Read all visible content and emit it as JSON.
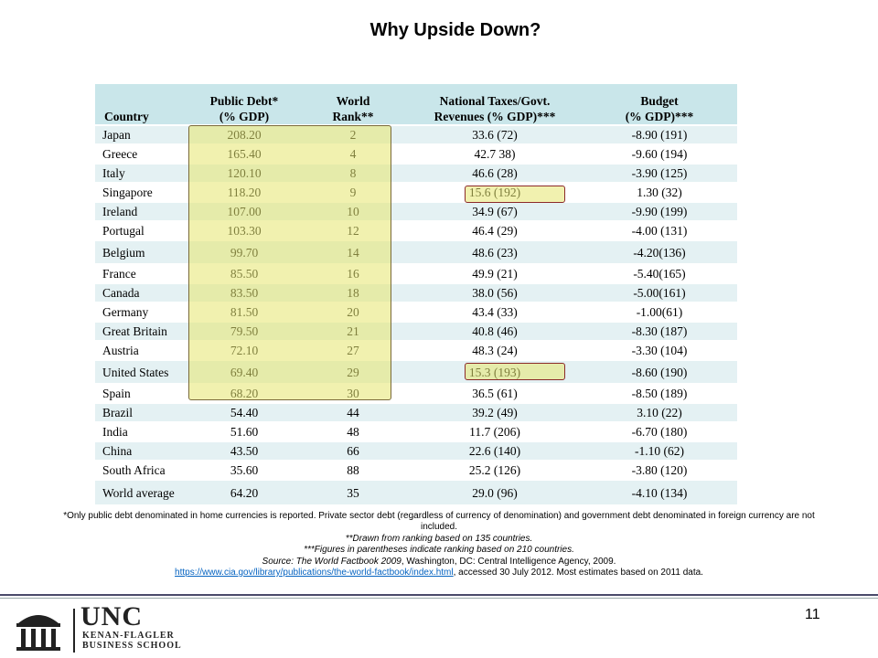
{
  "title": "Why Upside Down?",
  "table": {
    "headers": {
      "country": "Country",
      "debt_line1": "Public Debt*",
      "debt_line2": "(% GDP)",
      "rank_line1": "World",
      "rank_line2": "Rank**",
      "taxes_line1": "National Taxes/Govt.",
      "taxes_line2": "Revenues  (% GDP)***",
      "budget_line1": "Budget",
      "budget_line2": "(% GDP)***"
    },
    "rows": [
      {
        "country": "Japan",
        "debt": "208.20",
        "rank": "2",
        "taxes": "33.6 (72)",
        "budget": "-8.90 (191)"
      },
      {
        "country": "Greece",
        "debt": "165.40",
        "rank": "4",
        "taxes": "42.7 38)",
        "budget": "-9.60 (194)"
      },
      {
        "country": "Italy",
        "debt": "120.10",
        "rank": "8",
        "taxes": "46.6 (28)",
        "budget": "-3.90 (125)"
      },
      {
        "country": "Singapore",
        "debt": "118.20",
        "rank": "9",
        "taxes": "15.6 (192)",
        "budget": "1.30 (32)"
      },
      {
        "country": "Ireland",
        "debt": "107.00",
        "rank": "10",
        "taxes": "34.9 (67)",
        "budget": "-9.90 (199)"
      },
      {
        "country": "Portugal",
        "debt": "103.30",
        "rank": "12",
        "taxes": "46.4 (29)",
        "budget": "-4.00 (131)"
      },
      {
        "country": "Belgium",
        "debt": "99.70",
        "rank": "14",
        "taxes": "48.6 (23)",
        "budget": "-4.20(136)"
      },
      {
        "country": "France",
        "debt": "85.50",
        "rank": "16",
        "taxes": "49.9 (21)",
        "budget": "-5.40(165)"
      },
      {
        "country": "Canada",
        "debt": "83.50",
        "rank": "18",
        "taxes": "38.0 (56)",
        "budget": "-5.00(161)"
      },
      {
        "country": "Germany",
        "debt": "81.50",
        "rank": "20",
        "taxes": "43.4 (33)",
        "budget": "-1.00(61)"
      },
      {
        "country": "Great Britain",
        "debt": "79.50",
        "rank": "21",
        "taxes": "40.8 (46)",
        "budget": "-8.30 (187)"
      },
      {
        "country": "Austria",
        "debt": "72.10",
        "rank": "27",
        "taxes": "48.3 (24)",
        "budget": "-3.30 (104)"
      },
      {
        "country": "United States",
        "debt": "69.40",
        "rank": "29",
        "taxes": "15.3 (193)",
        "budget": "-8.60 (190)"
      },
      {
        "country": "Spain",
        "debt": "68.20",
        "rank": "30",
        "taxes": "36.5 (61)",
        "budget": "-8.50 (189)"
      },
      {
        "country": "Brazil",
        "debt": "54.40",
        "rank": "44",
        "taxes": "39.2 (49)",
        "budget": "3.10 (22)"
      },
      {
        "country": "India",
        "debt": "51.60",
        "rank": "48",
        "taxes": "11.7 (206)",
        "budget": "-6.70 (180)"
      },
      {
        "country": "China",
        "debt": "43.50",
        "rank": "66",
        "taxes": "22.6 (140)",
        "budget": "-1.10 (62)"
      },
      {
        "country": "South Africa",
        "debt": "35.60",
        "rank": "88",
        "taxes": "25.2 (126)",
        "budget": "-3.80 (120)"
      },
      {
        "country": "World average",
        "debt": "64.20",
        "rank": "35",
        "taxes": "29.0 (96)",
        "budget": "-4.10 (134)"
      }
    ]
  },
  "notes": {
    "line1": "*Only public debt denominated in home currencies is reported.  Private sector debt (regardless of currency of denomination) and government debt denominated in foreign currency are not included.",
    "line2": "**Drawn from ranking based on 135 countries.",
    "line3": "***Figures in parentheses indicate ranking based on 210 countries.",
    "source_prefix": "Source: The World Factbook 2009",
    "source_rest": ", Washington, DC: Central Intelligence Agency, 2009.",
    "link": "https://www.cia.gov/library/publications/the-world-factbook/index.html",
    "link_suffix": ", accessed 30 July 2012.  Most estimates based on 2011 data."
  },
  "footer": {
    "logo_unc": "UNC",
    "logo_line1": "KENAN-FLAGLER",
    "logo_line2": "BUSINESS SCHOOL",
    "page_number": "11"
  },
  "colors": {
    "header_fill": "#c9e6ea",
    "row_band": "#e4f1f3",
    "highlight": "#e6e66e"
  }
}
